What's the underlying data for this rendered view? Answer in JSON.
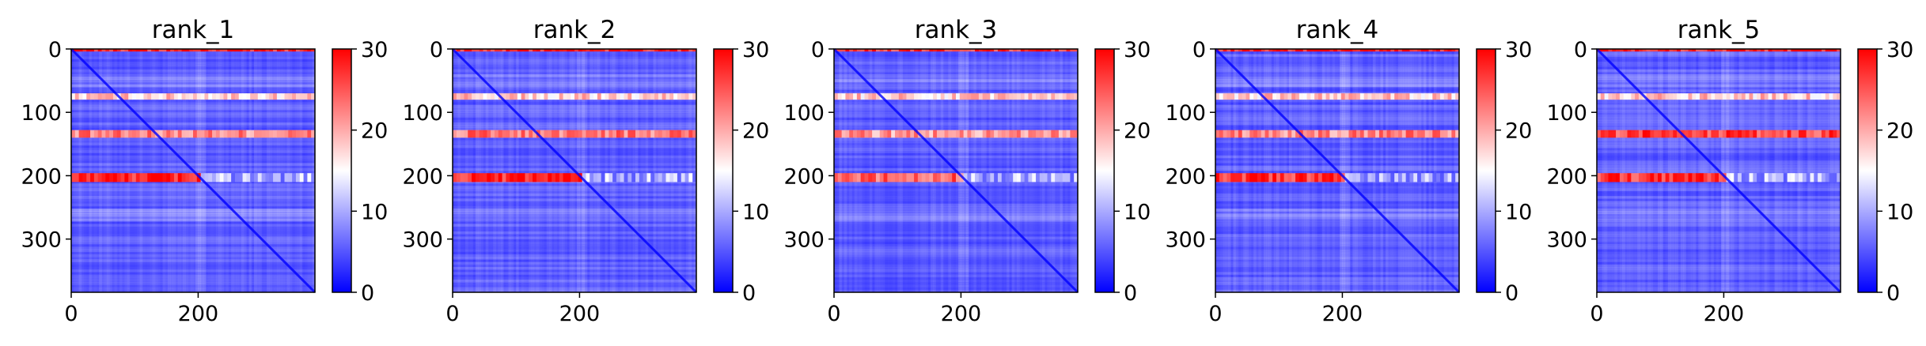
{
  "colors": {
    "low": "#0000ff",
    "mid": "#ffffff",
    "high": "#ff0000",
    "axis": "#000000"
  },
  "chart_data": [
    {
      "type": "heatmap",
      "title": "rank_1",
      "xlabel": "",
      "ylabel": "",
      "xlim": [
        0,
        384
      ],
      "ylim": [
        0,
        384
      ],
      "x_ticks": [
        "0",
        "200"
      ],
      "y_ticks": [
        "0",
        "100",
        "200",
        "300"
      ],
      "colorbar": {
        "range": [
          0,
          30
        ],
        "ticks": [
          "0",
          "10",
          "20",
          "30"
        ],
        "colormap": "bwr"
      },
      "bands": [
        {
          "rows": [
            0,
            4
          ],
          "value": 28
        },
        {
          "rows": [
            70,
            80
          ],
          "value": 18
        },
        {
          "rows": [
            128,
            140
          ],
          "value": 22
        },
        {
          "rows": [
            196,
            210
          ],
          "value": 28
        }
      ],
      "diagonal": true
    },
    {
      "type": "heatmap",
      "title": "rank_2",
      "xlabel": "",
      "ylabel": "",
      "xlim": [
        0,
        384
      ],
      "ylim": [
        0,
        384
      ],
      "x_ticks": [
        "0",
        "200"
      ],
      "y_ticks": [
        "0",
        "100",
        "200",
        "300"
      ],
      "colorbar": {
        "range": [
          0,
          30
        ],
        "ticks": [
          "0",
          "10",
          "20",
          "30"
        ],
        "colormap": "bwr"
      },
      "bands": [
        {
          "rows": [
            0,
            4
          ],
          "value": 28
        },
        {
          "rows": [
            70,
            80
          ],
          "value": 18
        },
        {
          "rows": [
            128,
            140
          ],
          "value": 23
        },
        {
          "rows": [
            196,
            210
          ],
          "value": 27
        }
      ],
      "diagonal": true
    },
    {
      "type": "heatmap",
      "title": "rank_3",
      "xlabel": "",
      "ylabel": "",
      "xlim": [
        0,
        384
      ],
      "ylim": [
        0,
        384
      ],
      "x_ticks": [
        "0",
        "200"
      ],
      "y_ticks": [
        "0",
        "100",
        "200",
        "300"
      ],
      "colorbar": {
        "range": [
          0,
          30
        ],
        "ticks": [
          "0",
          "10",
          "20",
          "30"
        ],
        "colormap": "bwr"
      },
      "bands": [
        {
          "rows": [
            0,
            4
          ],
          "value": 27
        },
        {
          "rows": [
            70,
            80
          ],
          "value": 18
        },
        {
          "rows": [
            128,
            140
          ],
          "value": 21
        },
        {
          "rows": [
            196,
            210
          ],
          "value": 24
        }
      ],
      "diagonal": true
    },
    {
      "type": "heatmap",
      "title": "rank_4",
      "xlabel": "",
      "ylabel": "",
      "xlim": [
        0,
        384
      ],
      "ylim": [
        0,
        384
      ],
      "x_ticks": [
        "0",
        "200"
      ],
      "y_ticks": [
        "0",
        "100",
        "200",
        "300"
      ],
      "colorbar": {
        "range": [
          0,
          30
        ],
        "ticks": [
          "0",
          "10",
          "20",
          "30"
        ],
        "colormap": "bwr"
      },
      "bands": [
        {
          "rows": [
            0,
            4
          ],
          "value": 28
        },
        {
          "rows": [
            70,
            80
          ],
          "value": 18
        },
        {
          "rows": [
            128,
            140
          ],
          "value": 22
        },
        {
          "rows": [
            196,
            210
          ],
          "value": 27
        }
      ],
      "diagonal": true
    },
    {
      "type": "heatmap",
      "title": "rank_5",
      "xlabel": "",
      "ylabel": "",
      "xlim": [
        0,
        384
      ],
      "ylim": [
        0,
        384
      ],
      "x_ticks": [
        "0",
        "200"
      ],
      "y_ticks": [
        "0",
        "100",
        "200",
        "300"
      ],
      "colorbar": {
        "range": [
          0,
          30
        ],
        "ticks": [
          "0",
          "10",
          "20",
          "30"
        ],
        "colormap": "bwr"
      },
      "bands": [
        {
          "rows": [
            0,
            4
          ],
          "value": 28
        },
        {
          "rows": [
            70,
            80
          ],
          "value": 18
        },
        {
          "rows": [
            128,
            140
          ],
          "value": 26
        },
        {
          "rows": [
            196,
            210
          ],
          "value": 27
        }
      ],
      "diagonal": true
    }
  ]
}
